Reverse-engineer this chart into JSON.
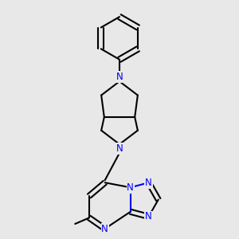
{
  "bg_color": "#e8e8e8",
  "bond_color": "#000000",
  "N_color": "#0000ff",
  "line_width": 1.5,
  "font_size": 8.5,
  "fig_w": 3.0,
  "fig_h": 3.0,
  "dpi": 100,
  "xlim": [
    0.22,
    0.78
  ],
  "ylim": [
    0.02,
    1.0
  ]
}
